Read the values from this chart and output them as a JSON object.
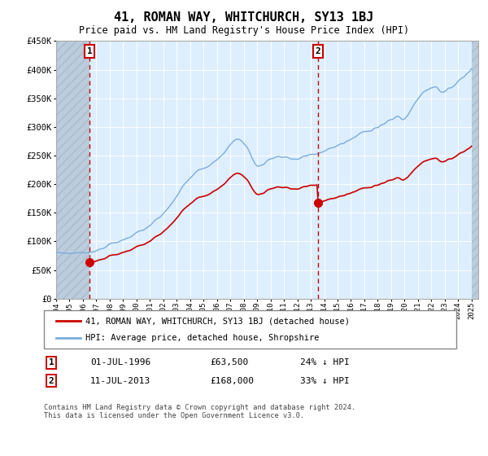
{
  "title": "41, ROMAN WAY, WHITCHURCH, SY13 1BJ",
  "subtitle": "Price paid vs. HM Land Registry's House Price Index (HPI)",
  "hpi_label": "HPI: Average price, detached house, Shropshire",
  "property_label": "41, ROMAN WAY, WHITCHURCH, SY13 1BJ (detached house)",
  "footer": "Contains HM Land Registry data © Crown copyright and database right 2024.\nThis data is licensed under the Open Government Licence v3.0.",
  "annotation1": {
    "label": "1",
    "date": "01-JUL-1996",
    "price": 63500,
    "note": "24% ↓ HPI"
  },
  "annotation2": {
    "label": "2",
    "date": "11-JUL-2013",
    "price": 168000,
    "note": "33% ↓ HPI"
  },
  "hpi_color": "#7aaddc",
  "property_color": "#cc0000",
  "annotation_color": "#cc0000",
  "background_plot": "#ddeeff",
  "ylim": [
    0,
    450000
  ],
  "yticks": [
    0,
    50000,
    100000,
    150000,
    200000,
    250000,
    300000,
    350000,
    400000,
    450000
  ],
  "ann1_x": 1996.5,
  "ann1_y": 63500,
  "ann2_x": 2013.54,
  "ann2_y": 168000,
  "xmin": 1994.0,
  "xmax": 2025.5
}
